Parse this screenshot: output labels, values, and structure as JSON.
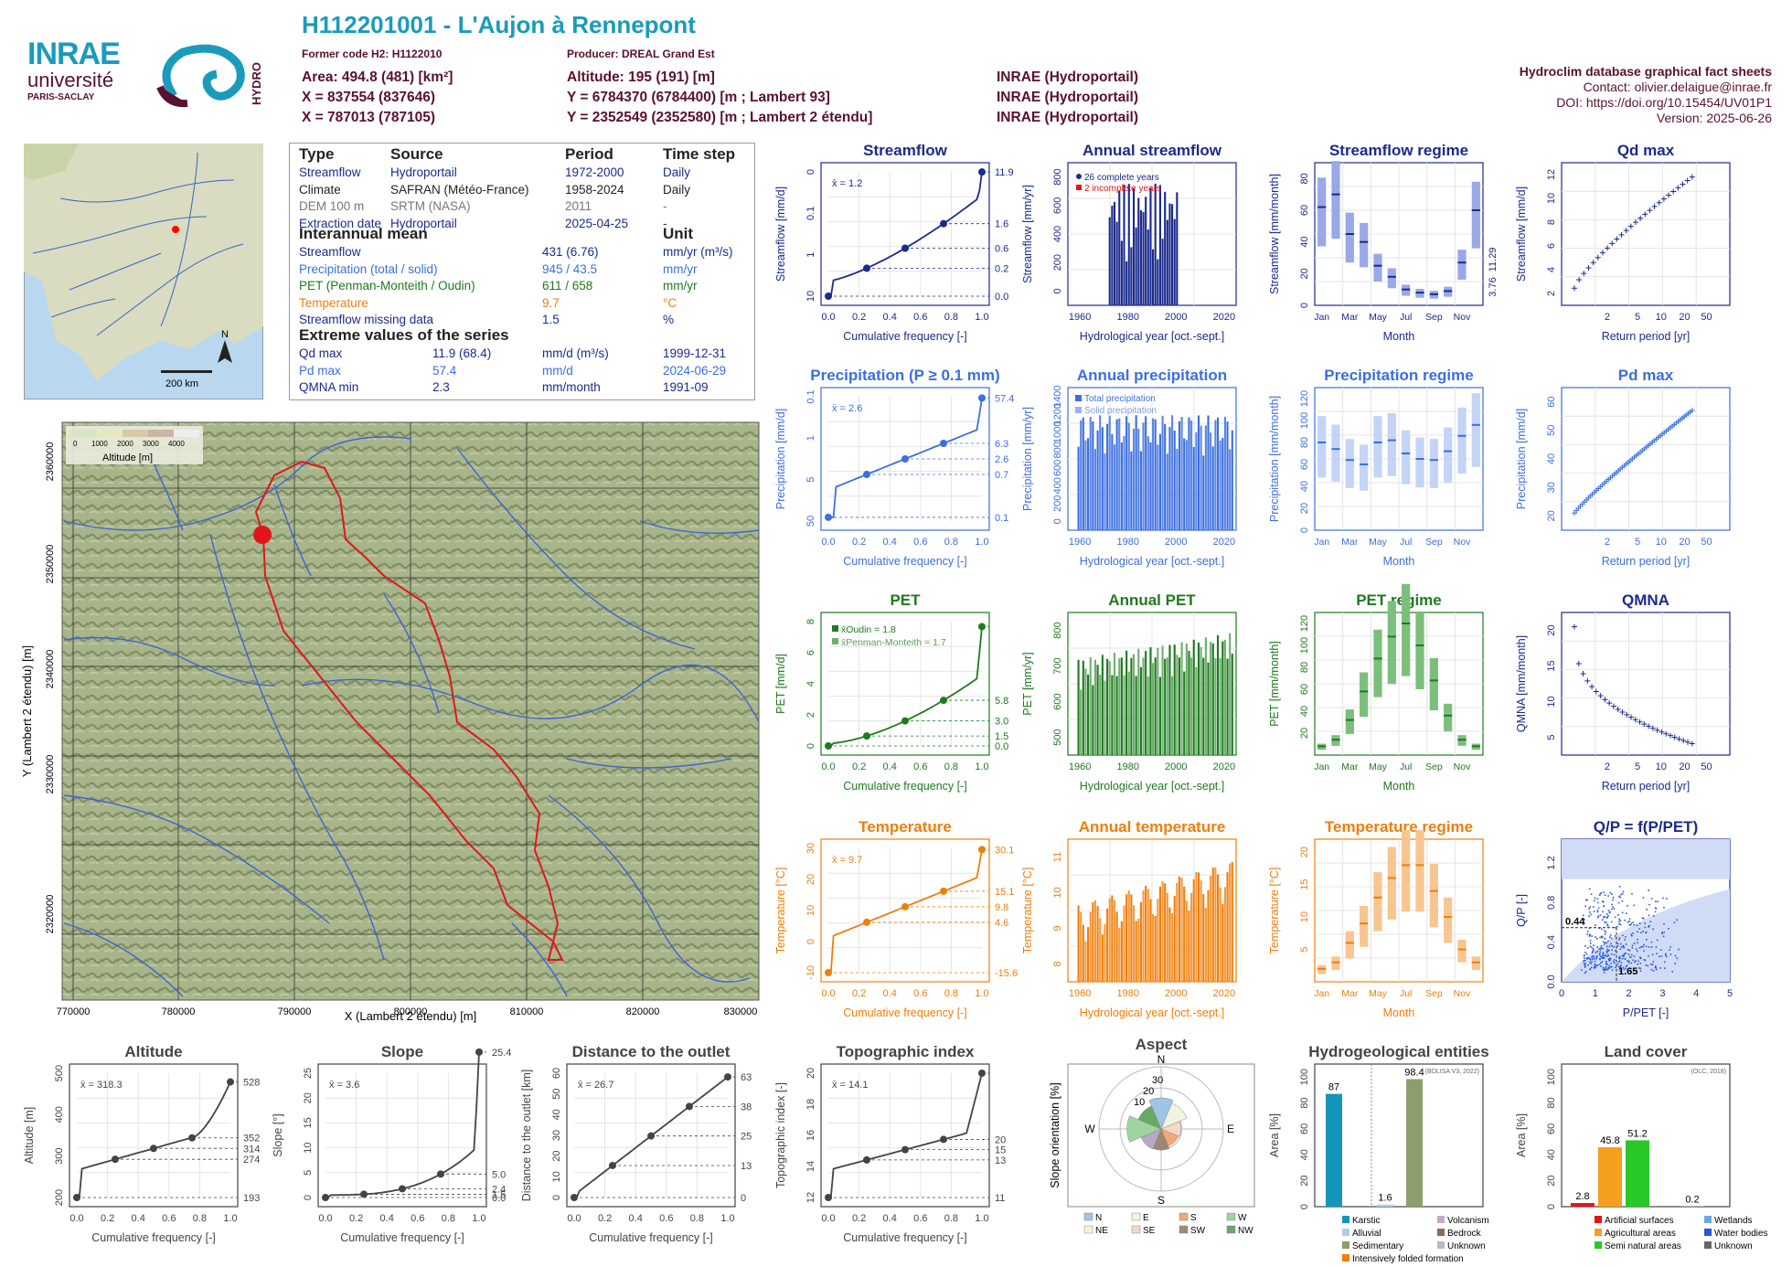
{
  "header": {
    "title": "H112201001 - L'Aujon à Rennepont",
    "former_code": "Former code H2: H1122010",
    "producer": "Producer: DREAL Grand Est",
    "area": "Area: 494.8 (481) [km²]",
    "x1": "X = 837554 (837646)",
    "x2": "X = 787013 (787105)",
    "altitude": "Altitude: 195 (191) [m]",
    "y1": "Y = 6784370 (6784400) [m ; Lambert 93]",
    "y2": "Y = 2352549 (2352580) [m ; Lambert 2 étendu]",
    "src1": "INRAE (Hydroportail)",
    "src2": "INRAE (Hydroportail)",
    "src3": "INRAE (Hydroportail)",
    "db_title": "Hydroclim database graphical fact sheets",
    "contact": "Contact: olivier.delaigue@inrae.fr",
    "doi": "DOI: https://doi.org/10.15454/UV01P1",
    "version": "Version: 2025-06-26",
    "logo_inrae": "INRAE",
    "logo_univ": "université",
    "logo_paris": "PARIS-SACLAY",
    "logo_hydro": "HYDRO"
  },
  "colors": {
    "streamflow": "#1b2a8c",
    "precip": "#3b6ee0",
    "pet": "#1e7a1e",
    "temp": "#f07e0a",
    "title_blue": "#1a9bbb",
    "maroon": "#5a1030"
  },
  "info": {
    "h_type": "Type",
    "h_source": "Source",
    "h_period": "Period",
    "h_timestep": "Time step",
    "rows": [
      {
        "type": "Streamflow",
        "source": "Hydroportail",
        "period": "1972-2000",
        "step": "Daily",
        "color": "#1b2a8c"
      },
      {
        "type": "Climate",
        "source": "SAFRAN (Météo-France)",
        "period": "1958-2024",
        "step": "Daily",
        "color": "#222"
      },
      {
        "type": "DEM 100 m",
        "source": "SRTM (NASA)",
        "period": "2011",
        "step": "-",
        "color": "#777"
      },
      {
        "type": "Extraction date",
        "source": "Hydroportail",
        "period": "2025-04-25",
        "step": "-",
        "color": "#1b2a8c"
      }
    ],
    "h_interannual": "Interannual mean",
    "h_unit": "Unit",
    "means": [
      {
        "name": "Streamflow",
        "value": "431 (6.76)",
        "unit": "mm/yr (m³/s)",
        "color": "#1b2a8c"
      },
      {
        "name": "Precipitation (total / solid)",
        "value": "945 / 43.5",
        "unit": "mm/yr",
        "color": "#3b6ee0"
      },
      {
        "name": "PET (Penman-Monteith / Oudin)",
        "value": "611 / 658",
        "unit": "mm/yr",
        "color": "#1e7a1e"
      },
      {
        "name": "Temperature",
        "value": "9.7",
        "unit": "°C",
        "color": "#f07e0a"
      },
      {
        "name": "Streamflow missing data",
        "value": "1.5",
        "unit": "%",
        "color": "#1b2a8c"
      }
    ],
    "h_extreme": "Extreme values of the series",
    "extremes": [
      {
        "name": "Qd max",
        "value": "11.9 (68.4)",
        "unit": "mm/d (m³/s)",
        "date": "1999-12-31",
        "color": "#1b2a8c"
      },
      {
        "name": "Pd max",
        "value": "57.4",
        "unit": "mm/d",
        "date": "2024-06-29",
        "color": "#3b6ee0"
      },
      {
        "name": "QMNA min",
        "value": "2.3",
        "unit": "mm/month",
        "date": "1991-09",
        "color": "#1b2a8c"
      }
    ]
  },
  "map": {
    "scale": "200 km",
    "north": "N",
    "legend_title": "Altitude [m]",
    "legend_ticks": [
      "0",
      "1000",
      "2000",
      "3000",
      "4000"
    ],
    "xlabel": "X (Lambert 2 étendu) [m]",
    "ylabel": "Y (Lambert 2 étendu) [m]",
    "xticks": [
      "770000",
      "780000",
      "790000",
      "800000",
      "810000",
      "820000",
      "830000"
    ],
    "yticks": [
      "2360000",
      "2350000",
      "2340000",
      "2330000",
      "2320000"
    ]
  },
  "chart_data": [
    {
      "id": "streamflow",
      "type": "line",
      "title": "Streamflow",
      "ylabel": "Streamflow [mm/d]",
      "xlabel": "Cumulative frequency [-]",
      "mean": "x̄ = 1.2",
      "right_ticks": [
        "11.9",
        "1.6",
        "0.6",
        "0.2",
        "0.0"
      ],
      "left_ticks": [
        "10",
        "1",
        "0.1",
        "0"
      ]
    },
    {
      "id": "annual_streamflow",
      "type": "bar",
      "title": "Annual streamflow",
      "ylabel": "Streamflow [mm/yr]",
      "xlabel": "Hydrological year [oct.-sept.]",
      "legend": [
        "26 complete years",
        "2 incomplete years"
      ],
      "yticks": [
        "0",
        "200",
        "400",
        "600",
        "800"
      ],
      "xticks": [
        "1960",
        "1980",
        "2000",
        "2020"
      ]
    },
    {
      "id": "streamflow_regime",
      "type": "box",
      "title": "Streamflow regime",
      "ylabel": "Streamflow [mm/month]",
      "xlabel": "Month",
      "yticks": [
        "0",
        "20",
        "40",
        "60",
        "80"
      ],
      "right_ticks": [
        "11.29",
        "3.76"
      ],
      "xticks": [
        "Jan",
        "Mar",
        "May",
        "Jul",
        "Sep",
        "Nov"
      ],
      "values": [
        62,
        70,
        45,
        40,
        25,
        18,
        10,
        8,
        7,
        9,
        27,
        60
      ]
    },
    {
      "id": "qd_max",
      "type": "scatter",
      "title": "Qd max",
      "ylabel": "Streamflow [mm/d]",
      "xlabel": "Return period [yr]",
      "yticks": [
        "2",
        "4",
        "6",
        "8",
        "10",
        "12"
      ],
      "xticks": [
        "2",
        "5",
        "10",
        "20",
        "50"
      ]
    },
    {
      "id": "precipitation",
      "type": "line",
      "title": "Precipitation (P ≥ 0.1 mm)",
      "ylabel": "Precipitation [mm/d]",
      "xlabel": "Cumulative frequency [-]",
      "mean": "x̄ = 2.6",
      "right_ticks": [
        "57.4",
        "6.3",
        "2.6",
        "0.7",
        "0.1"
      ],
      "left_ticks": [
        "50",
        "5",
        "1",
        "0.1"
      ]
    },
    {
      "id": "annual_precipitation",
      "type": "bar",
      "title": "Annual precipitation",
      "ylabel": "Precipitation [mm/yr]",
      "xlabel": "Hydrological year [oct.-sept.]",
      "legend": [
        "Total precipitation",
        "Solid precipitation"
      ],
      "yticks": [
        "0",
        "200",
        "400",
        "600",
        "800",
        "1000",
        "1200",
        "1400"
      ],
      "xticks": [
        "1960",
        "1980",
        "2000",
        "2020"
      ]
    },
    {
      "id": "precipitation_regime",
      "type": "box",
      "title": "Precipitation regime",
      "ylabel": "Precipitation [mm/month]",
      "xlabel": "Month",
      "yticks": [
        "0",
        "20",
        "40",
        "60",
        "80",
        "100",
        "120"
      ],
      "xticks": [
        "Jan",
        "Mar",
        "May",
        "Jul",
        "Sep",
        "Nov"
      ],
      "values": [
        80,
        74,
        64,
        60,
        80,
        82,
        70,
        65,
        64,
        72,
        86,
        96
      ]
    },
    {
      "id": "pd_max",
      "type": "scatter",
      "title": "Pd max",
      "ylabel": "Precipitation [mm/d]",
      "xlabel": "Return period [yr]",
      "yticks": [
        "20",
        "30",
        "40",
        "50",
        "60"
      ],
      "xticks": [
        "2",
        "5",
        "10",
        "20",
        "50"
      ]
    },
    {
      "id": "pet",
      "type": "line",
      "title": "PET",
      "ylabel": "PET [mm/d]",
      "xlabel": "Cumulative frequency [-]",
      "mean1": "x̄Oudin = 1.8",
      "mean2": "x̄Penman-Monteith = 1.7",
      "right_ticks": [
        "5.8",
        "3.0",
        "1.5",
        "0.0"
      ],
      "left_ticks": [
        "0",
        "2",
        "4",
        "6",
        "8"
      ]
    },
    {
      "id": "annual_pet",
      "type": "bar",
      "title": "Annual PET",
      "ylabel": "PET [mm/yr]",
      "xlabel": "Hydrological year [oct.-sept.]",
      "yticks": [
        "500",
        "600",
        "700",
        "800"
      ],
      "xticks": [
        "1960",
        "1980",
        "2000",
        "2020"
      ]
    },
    {
      "id": "pet_regime",
      "type": "box",
      "title": "PET regime",
      "ylabel": "PET [mm/month]",
      "xlabel": "Month",
      "yticks": [
        "20",
        "40",
        "60",
        "80",
        "100",
        "120"
      ],
      "xticks": [
        "Jan",
        "Mar",
        "May",
        "Jul",
        "Sep",
        "Nov"
      ],
      "values": [
        8,
        14,
        32,
        58,
        88,
        108,
        120,
        100,
        68,
        36,
        14,
        8
      ]
    },
    {
      "id": "qmna",
      "type": "scatter",
      "title": "QMNA",
      "ylabel": "QMNA [mm/month]",
      "xlabel": "Return period [yr]",
      "yticks": [
        "5",
        "10",
        "15",
        "20"
      ],
      "xticks": [
        "2",
        "5",
        "10",
        "20",
        "50"
      ]
    },
    {
      "id": "temperature",
      "type": "line",
      "title": "Temperature",
      "ylabel": "Temperature [°C]",
      "xlabel": "Cumulative frequency [-]",
      "mean": "x̄ = 9.7",
      "right_ticks": [
        "30.1",
        "15.1",
        "9.8",
        "4.6",
        "-15.6"
      ],
      "left_ticks": [
        "-10",
        "0",
        "10",
        "20",
        "30"
      ]
    },
    {
      "id": "annual_temperature",
      "type": "bar",
      "title": "Annual temperature",
      "ylabel": "Temperature [°C]",
      "xlabel": "Hydrological year [oct.-sept.]",
      "yticks": [
        "8",
        "9",
        "10",
        "11"
      ],
      "xticks": [
        "1960",
        "1980",
        "2000",
        "2020"
      ]
    },
    {
      "id": "temperature_regime",
      "type": "box",
      "title": "Temperature regime",
      "ylabel": "Temperature [°C]",
      "xlabel": "Month",
      "yticks": [
        "5",
        "10",
        "15",
        "20"
      ],
      "xticks": [
        "Jan",
        "Mar",
        "May",
        "Jul",
        "Sep",
        "Nov"
      ],
      "values": [
        2,
        3,
        6,
        9,
        13,
        16,
        18,
        18,
        14,
        10,
        5,
        3
      ]
    },
    {
      "id": "qp",
      "type": "scatter",
      "title": "Q/P = f(P/PET)",
      "ylabel": "Q/P [-]",
      "xlabel": "P/PET [-]",
      "yticks": [
        "0.0",
        "0.4",
        "0.8",
        "1.2"
      ],
      "xticks": [
        "0",
        "1",
        "2",
        "3",
        "4",
        "5"
      ],
      "annot1": "0.44",
      "annot2": "1.65"
    },
    {
      "id": "altitude",
      "type": "line",
      "title": "Altitude",
      "ylabel": "Altitude [m]",
      "xlabel": "Cumulative frequency [-]",
      "mean": "x̄ = 318.3",
      "right_ticks": [
        "528",
        "352",
        "314",
        "274",
        "193"
      ],
      "left_ticks": [
        "200",
        "300",
        "400",
        "500"
      ]
    },
    {
      "id": "slope",
      "type": "line",
      "title": "Slope",
      "ylabel": "Slope [°]",
      "xlabel": "Cumulative frequency [-]",
      "mean": "x̄ = 3.6",
      "right_ticks": [
        "25.4",
        "5.0",
        "2.4",
        "1.5",
        "0.0"
      ],
      "left_ticks": [
        "0",
        "5",
        "10",
        "15",
        "20",
        "25"
      ]
    },
    {
      "id": "distance",
      "type": "line",
      "title": "Distance to the outlet",
      "ylabel": "Distance to the outlet [km]",
      "xlabel": "Cumulative frequency [-]",
      "mean": "x̄ = 26.7",
      "right_ticks": [
        "63",
        "38",
        "25",
        "13",
        "0"
      ],
      "left_ticks": [
        "0",
        "10",
        "20",
        "30",
        "40",
        "50",
        "60"
      ]
    },
    {
      "id": "topo",
      "type": "line",
      "title": "Topographic index",
      "ylabel": "Topographic index [-]",
      "xlabel": "Cumulative frequency [-]",
      "mean": "x̄ = 14.1",
      "right_ticks": [
        "20",
        "15",
        "13",
        "11"
      ],
      "left_ticks": [
        "12",
        "14",
        "16",
        "18",
        "20"
      ]
    },
    {
      "id": "aspect",
      "type": "rose",
      "title": "Aspect",
      "ylabel": "Slope orientation [%]",
      "dirs": [
        "N",
        "E",
        "S",
        "W"
      ],
      "rings": [
        "10",
        "20",
        "30"
      ],
      "legend": [
        "N",
        "E",
        "S",
        "W",
        "NE",
        "SE",
        "SW",
        "NW"
      ]
    },
    {
      "id": "hydrogeo",
      "type": "bar",
      "title": "Hydrogeological entities",
      "ylabel": "Area [%]",
      "source": "(BDLISA V3, 2022)",
      "values": [
        87,
        1.6,
        98.4
      ],
      "labels": [
        "87",
        "1.6",
        "98.4"
      ],
      "yticks": [
        "0",
        "20",
        "40",
        "60",
        "80",
        "100"
      ],
      "legend": [
        "Karstic",
        "Volcanism",
        "Alluvial",
        "Bedrock",
        "Sedimentary",
        "Unknown",
        "Intensively folded formation"
      ]
    },
    {
      "id": "landcover",
      "type": "bar",
      "title": "Land cover",
      "ylabel": "Area [%]",
      "source": "(OLC, 2018)",
      "values": [
        2.8,
        45.8,
        51.2,
        0.2
      ],
      "labels": [
        "2.8",
        "45.8",
        "51.2",
        "0.2"
      ],
      "yticks": [
        "0",
        "20",
        "40",
        "60",
        "80",
        "100"
      ],
      "legend": [
        "Artificial surfaces",
        "Wetlands",
        "Agricultural areas",
        "Water bodies",
        "Semi natural areas",
        "Unknown"
      ]
    }
  ]
}
